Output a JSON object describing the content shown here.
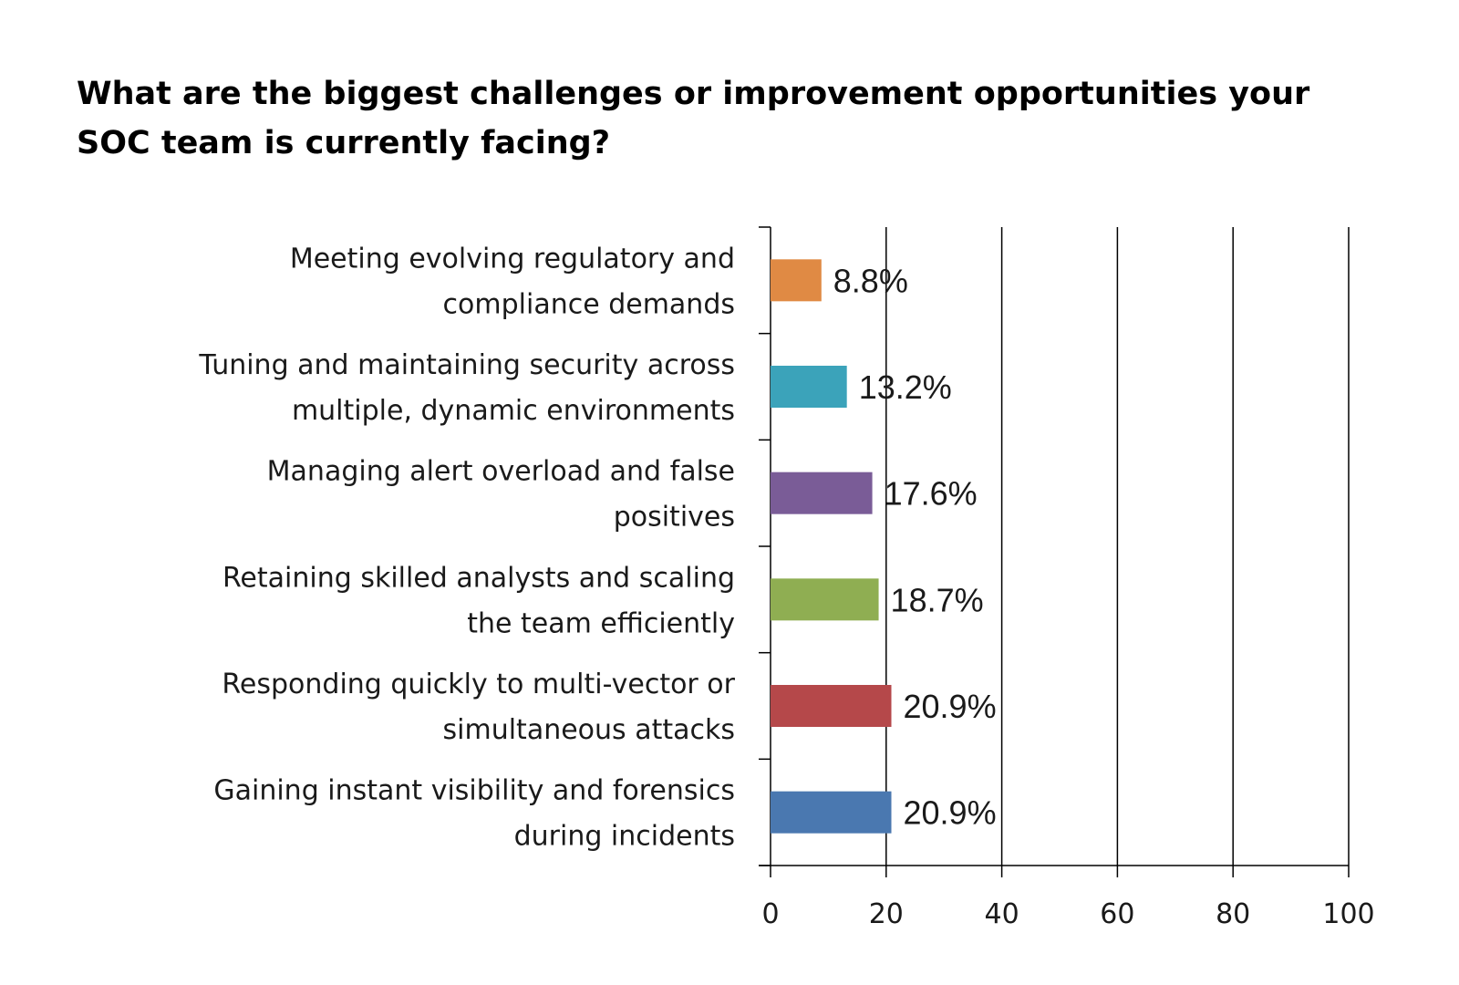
{
  "chart_data": {
    "type": "bar",
    "orientation": "horizontal",
    "title": "What are the biggest challenges or improvement opportunities your SOC team is currently facing?",
    "categories": [
      "Meeting evolving regulatory and compliance demands",
      "Tuning and maintaining security across multiple, dynamic environments",
      "Managing alert overload and false positives",
      "Retaining skilled analysts and scaling the team efficiently",
      "Responding quickly to multi-vector or simultaneous attacks",
      "Gaining instant visibility and forensics during incidents"
    ],
    "category_lines": [
      [
        "Meeting evolving regulatory and",
        "compliance demands"
      ],
      [
        "Tuning and maintaining security across",
        "multiple, dynamic environments"
      ],
      [
        "Managing alert overload and false",
        "positives"
      ],
      [
        "Retaining skilled analysts and scaling",
        "the team efficiently"
      ],
      [
        "Responding quickly to multi-vector or",
        "simultaneous attacks"
      ],
      [
        "Gaining instant visibility and forensics",
        "during incidents"
      ]
    ],
    "values": [
      8.8,
      13.2,
      17.6,
      18.7,
      20.9,
      20.9
    ],
    "data_labels": [
      "8.8%",
      "13.2%",
      "17.6%",
      "18.7%",
      "20.9%",
      "20.9%"
    ],
    "colors": [
      "#E08A44",
      "#3BA3BA",
      "#7A5C97",
      "#8FAE52",
      "#B5484A",
      "#4A78B0"
    ],
    "xlim": [
      0,
      100
    ],
    "xticks": [
      0,
      20,
      40,
      60,
      80,
      100
    ],
    "xtick_labels": [
      "0",
      "20",
      "40",
      "60",
      "80",
      "100"
    ],
    "grid": true,
    "legend": "none",
    "xlabel": "",
    "ylabel": ""
  }
}
